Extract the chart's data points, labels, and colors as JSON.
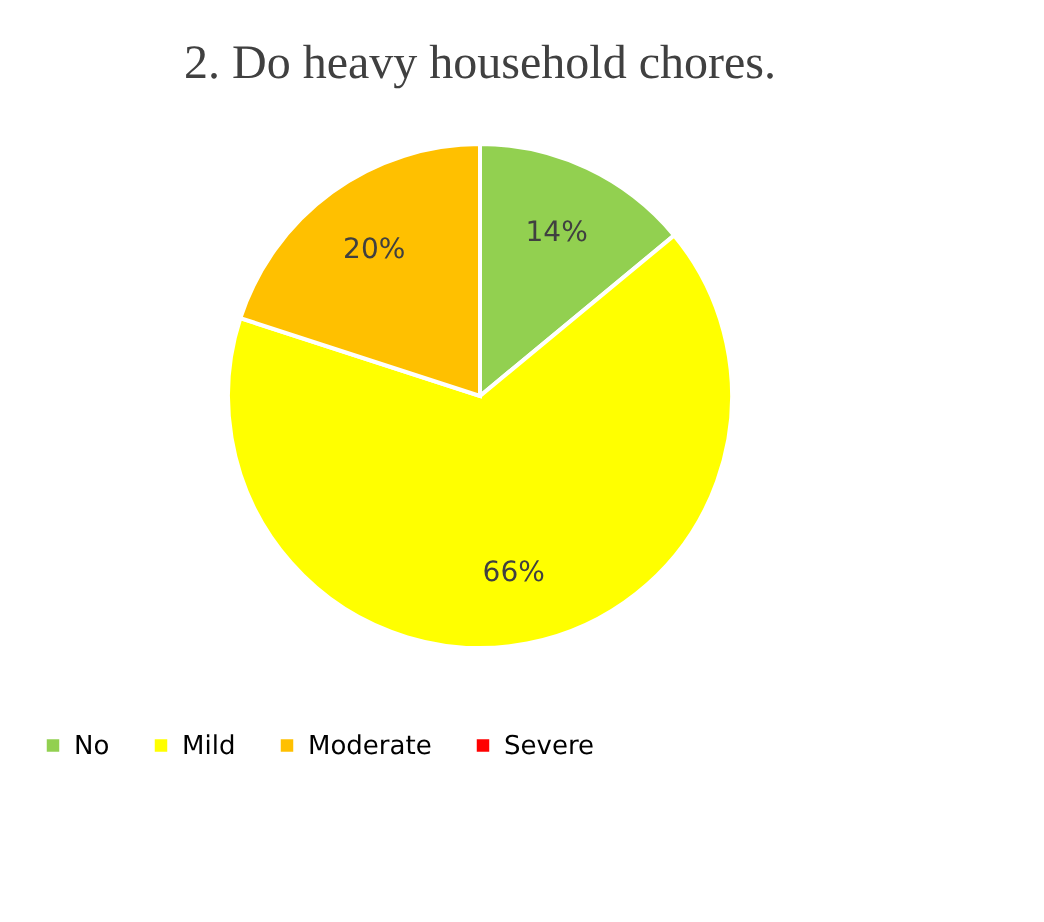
{
  "chart_data": {
    "type": "pie",
    "title": "2. Do heavy household chores.",
    "categories": [
      "No",
      "Mild",
      "Moderate",
      "Severe"
    ],
    "values": [
      14,
      66,
      20,
      0
    ],
    "colors": [
      "#92d050",
      "#ffff00",
      "#ffc000",
      "#ff0000"
    ],
    "value_labels": [
      "14%",
      "66%",
      "20%",
      null
    ],
    "legend": "bottom"
  }
}
